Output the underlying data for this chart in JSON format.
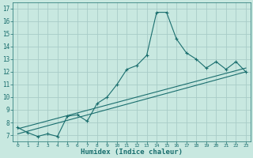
{
  "xlabel": "Humidex (Indice chaleur)",
  "bg_color": "#c8e8e0",
  "grid_color": "#a8ccc8",
  "line_color": "#1a6e6e",
  "xlim": [
    -0.5,
    23.5
  ],
  "ylim": [
    6.5,
    17.5
  ],
  "xticks": [
    0,
    1,
    2,
    3,
    4,
    5,
    6,
    7,
    8,
    9,
    10,
    11,
    12,
    13,
    14,
    15,
    16,
    17,
    18,
    19,
    20,
    21,
    22,
    23
  ],
  "yticks": [
    7,
    8,
    9,
    10,
    11,
    12,
    13,
    14,
    15,
    16,
    17
  ],
  "main_x": [
    0,
    1,
    2,
    3,
    4,
    5,
    6,
    7,
    8,
    9,
    10,
    11,
    12,
    13,
    14,
    15,
    16,
    17,
    18,
    19,
    20,
    21,
    22,
    23
  ],
  "main_y": [
    7.6,
    7.2,
    6.9,
    7.1,
    6.9,
    8.5,
    8.6,
    8.1,
    9.5,
    10.0,
    11.0,
    12.2,
    12.5,
    13.3,
    16.7,
    16.7,
    14.6,
    13.5,
    13.0,
    12.3,
    12.8,
    12.2,
    12.8,
    12.0
  ],
  "trend1_x": [
    0,
    23
  ],
  "trend1_y": [
    7.5,
    12.3
  ],
  "trend2_x": [
    0,
    23
  ],
  "trend2_y": [
    7.1,
    12.0
  ]
}
